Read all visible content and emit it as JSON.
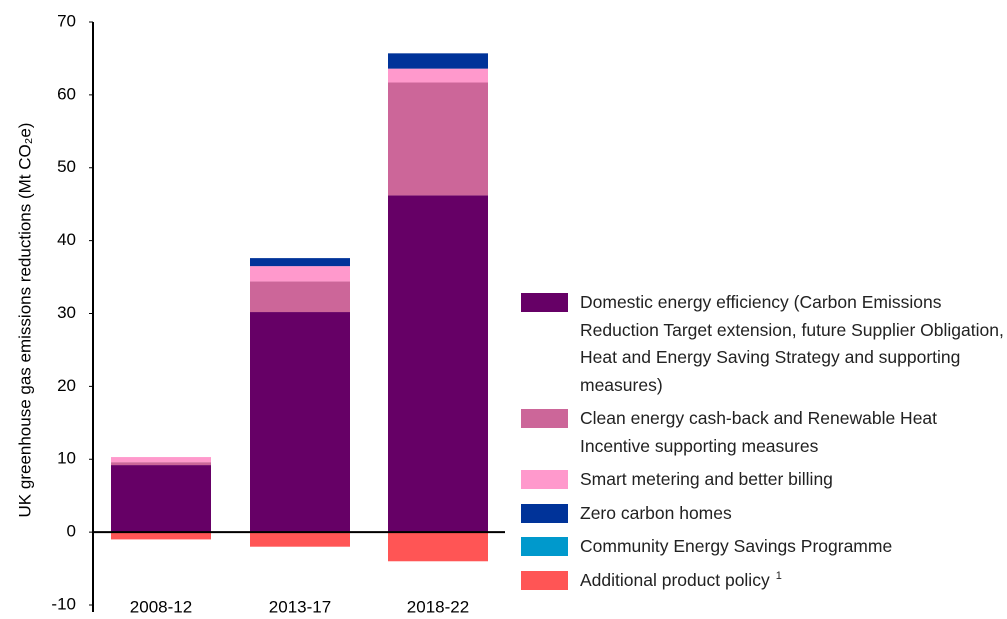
{
  "chart_data": {
    "type": "stacked_bar",
    "y_label": "UK greenhouse gas emissions reductions (Mt CO₂e)",
    "categories": [
      "2008-12",
      "2013-17",
      "2018-22"
    ],
    "series": [
      {
        "name": "Domestic energy efficiency (Carbon Emissions Reduction Target extension, future Supplier Obligation, Heat and Energy Saving Strategy and supporting measures)",
        "color": "#660066",
        "values": [
          9.2,
          30.2,
          46.2
        ]
      },
      {
        "name": "Clean energy cash-back and Renewable Heat Incentive supporting measures",
        "color": "#cc6699",
        "values": [
          0.4,
          4.2,
          15.5
        ]
      },
      {
        "name": "Smart metering and better billing",
        "color": "#ff99cc",
        "values": [
          0.7,
          2.1,
          1.9
        ]
      },
      {
        "name": "Zero carbon homes",
        "color": "#003399",
        "values": [
          0,
          1.1,
          2.1
        ]
      },
      {
        "name": "Community Energy Savings Programme",
        "color": "#0099cc",
        "values": [
          0,
          0,
          0
        ]
      },
      {
        "name": "Additional product policy",
        "footnote": "1",
        "color": "#ff5555",
        "values": [
          -1.0,
          -2.0,
          -4.0
        ]
      }
    ],
    "ylim": [
      -10,
      70
    ],
    "yticks": [
      -10,
      0,
      10,
      20,
      30,
      40,
      50,
      60,
      70
    ]
  }
}
